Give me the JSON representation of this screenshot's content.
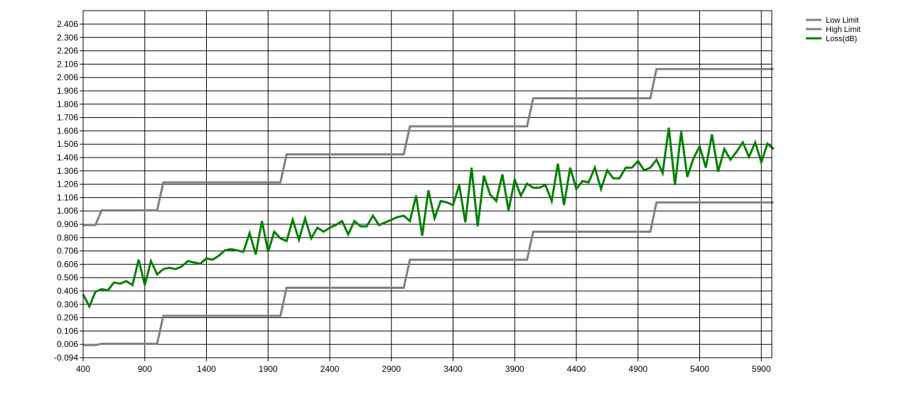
{
  "chart_data": {
    "type": "line",
    "title": "",
    "xlabel": "",
    "ylabel": "",
    "xlim": [
      400,
      6000
    ],
    "ylim": [
      -0.094,
      2.45
    ],
    "x_ticks": [
      "400",
      "900",
      "1400",
      "1900",
      "2400",
      "2900",
      "3400",
      "3900",
      "4400",
      "4900",
      "5400",
      "5900"
    ],
    "y_ticks": [
      "-0.094",
      "0.006",
      "0.106",
      "0.206",
      "0.306",
      "0.406",
      "0.506",
      "0.606",
      "0.706",
      "0.806",
      "0.906",
      "1.006",
      "1.106",
      "1.206",
      "1.306",
      "1.406",
      "1.506",
      "1.606",
      "1.706",
      "1.806",
      "1.906",
      "2.006",
      "2.106",
      "2.206",
      "2.306",
      "2.406"
    ],
    "grid": true,
    "legend_position": "top-right",
    "series": [
      {
        "name": "Low Limit",
        "color": "#808080",
        "points": [
          [
            400,
            0.0
          ],
          [
            500,
            0.0
          ],
          [
            550,
            0.01
          ],
          [
            1000,
            0.01
          ],
          [
            1050,
            0.22
          ],
          [
            2000,
            0.22
          ],
          [
            2050,
            0.43
          ],
          [
            3000,
            0.43
          ],
          [
            3050,
            0.64
          ],
          [
            4000,
            0.64
          ],
          [
            4050,
            0.85
          ],
          [
            5000,
            0.85
          ],
          [
            5050,
            1.07
          ],
          [
            6000,
            1.07
          ]
        ]
      },
      {
        "name": "High Limit",
        "color": "#808080",
        "points": [
          [
            400,
            0.9
          ],
          [
            500,
            0.9
          ],
          [
            550,
            1.01
          ],
          [
            1000,
            1.01
          ],
          [
            1050,
            1.22
          ],
          [
            2000,
            1.22
          ],
          [
            2050,
            1.43
          ],
          [
            3000,
            1.43
          ],
          [
            3050,
            1.64
          ],
          [
            4000,
            1.64
          ],
          [
            4050,
            1.85
          ],
          [
            5000,
            1.85
          ],
          [
            5050,
            2.07
          ],
          [
            6000,
            2.07
          ]
        ]
      },
      {
        "name": "Loss(dB)",
        "color": "#008000",
        "points": [
          [
            400,
            0.38
          ],
          [
            450,
            0.29
          ],
          [
            500,
            0.4
          ],
          [
            550,
            0.42
          ],
          [
            600,
            0.41
          ],
          [
            650,
            0.47
          ],
          [
            700,
            0.46
          ],
          [
            750,
            0.48
          ],
          [
            800,
            0.45
          ],
          [
            850,
            0.64
          ],
          [
            900,
            0.45
          ],
          [
            950,
            0.63
          ],
          [
            1000,
            0.53
          ],
          [
            1050,
            0.57
          ],
          [
            1100,
            0.58
          ],
          [
            1150,
            0.57
          ],
          [
            1200,
            0.59
          ],
          [
            1250,
            0.63
          ],
          [
            1300,
            0.62
          ],
          [
            1350,
            0.61
          ],
          [
            1400,
            0.65
          ],
          [
            1450,
            0.64
          ],
          [
            1500,
            0.67
          ],
          [
            1550,
            0.71
          ],
          [
            1600,
            0.72
          ],
          [
            1650,
            0.71
          ],
          [
            1700,
            0.7
          ],
          [
            1750,
            0.84
          ],
          [
            1800,
            0.68
          ],
          [
            1850,
            0.93
          ],
          [
            1900,
            0.7
          ],
          [
            1950,
            0.85
          ],
          [
            2000,
            0.8
          ],
          [
            2050,
            0.78
          ],
          [
            2100,
            0.94
          ],
          [
            2150,
            0.79
          ],
          [
            2200,
            0.95
          ],
          [
            2250,
            0.8
          ],
          [
            2300,
            0.88
          ],
          [
            2350,
            0.85
          ],
          [
            2400,
            0.88
          ],
          [
            2450,
            0.9
          ],
          [
            2500,
            0.93
          ],
          [
            2550,
            0.83
          ],
          [
            2600,
            0.93
          ],
          [
            2650,
            0.89
          ],
          [
            2700,
            0.89
          ],
          [
            2750,
            0.97
          ],
          [
            2800,
            0.9
          ],
          [
            2850,
            0.92
          ],
          [
            2900,
            0.94
          ],
          [
            2950,
            0.96
          ],
          [
            3000,
            0.97
          ],
          [
            3050,
            0.93
          ],
          [
            3100,
            1.12
          ],
          [
            3150,
            0.82
          ],
          [
            3200,
            1.16
          ],
          [
            3250,
            0.95
          ],
          [
            3300,
            1.08
          ],
          [
            3350,
            1.07
          ],
          [
            3400,
            1.05
          ],
          [
            3450,
            1.2
          ],
          [
            3500,
            0.92
          ],
          [
            3550,
            1.33
          ],
          [
            3600,
            0.89
          ],
          [
            3650,
            1.27
          ],
          [
            3700,
            1.13
          ],
          [
            3750,
            1.08
          ],
          [
            3800,
            1.28
          ],
          [
            3850,
            1.01
          ],
          [
            3900,
            1.24
          ],
          [
            3950,
            1.12
          ],
          [
            4000,
            1.21
          ],
          [
            4050,
            1.18
          ],
          [
            4100,
            1.18
          ],
          [
            4150,
            1.2
          ],
          [
            4200,
            1.08
          ],
          [
            4250,
            1.36
          ],
          [
            4300,
            1.05
          ],
          [
            4350,
            1.33
          ],
          [
            4400,
            1.17
          ],
          [
            4450,
            1.23
          ],
          [
            4500,
            1.22
          ],
          [
            4550,
            1.33
          ],
          [
            4600,
            1.17
          ],
          [
            4650,
            1.31
          ],
          [
            4700,
            1.25
          ],
          [
            4750,
            1.25
          ],
          [
            4800,
            1.33
          ],
          [
            4850,
            1.33
          ],
          [
            4900,
            1.38
          ],
          [
            4950,
            1.31
          ],
          [
            5000,
            1.33
          ],
          [
            5050,
            1.39
          ],
          [
            5100,
            1.29
          ],
          [
            5150,
            1.63
          ],
          [
            5200,
            1.2
          ],
          [
            5250,
            1.6
          ],
          [
            5300,
            1.26
          ],
          [
            5350,
            1.4
          ],
          [
            5400,
            1.49
          ],
          [
            5450,
            1.33
          ],
          [
            5500,
            1.58
          ],
          [
            5550,
            1.3
          ],
          [
            5600,
            1.47
          ],
          [
            5650,
            1.39
          ],
          [
            5700,
            1.45
          ],
          [
            5750,
            1.52
          ],
          [
            5800,
            1.41
          ],
          [
            5850,
            1.52
          ],
          [
            5900,
            1.37
          ],
          [
            5950,
            1.51
          ],
          [
            6000,
            1.47
          ]
        ]
      }
    ]
  }
}
